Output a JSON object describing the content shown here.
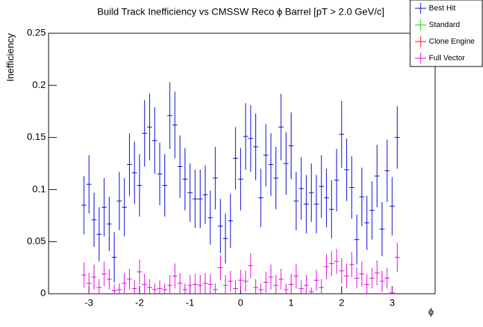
{
  "chart_data": {
    "type": "errorbar",
    "title": "Build Track Inefficiency vs CMSSW Reco ϕ Barrel [pT > 2.0 GeV/c]",
    "x_label": "ϕ",
    "y_label": "Inefficiency",
    "xlim": [
      -3.8,
      3.85
    ],
    "ylim": [
      0,
      0.25
    ],
    "xticks": [
      -3,
      -2,
      -1,
      0,
      1,
      2,
      3
    ],
    "yticks": [
      0,
      0.05,
      0.1,
      0.15,
      0.2,
      0.25
    ],
    "x": [
      -3.1,
      -3.0,
      -2.9,
      -2.8,
      -2.7,
      -2.6,
      -2.5,
      -2.4,
      -2.3,
      -2.2,
      -2.1,
      -2.0,
      -1.9,
      -1.8,
      -1.7,
      -1.6,
      -1.5,
      -1.4,
      -1.3,
      -1.2,
      -1.1,
      -1.0,
      -0.9,
      -0.8,
      -0.7,
      -0.6,
      -0.5,
      -0.4,
      -0.3,
      -0.2,
      -0.1,
      0.0,
      0.1,
      0.2,
      0.3,
      0.4,
      0.5,
      0.6,
      0.7,
      0.8,
      0.9,
      1.0,
      1.1,
      1.2,
      1.3,
      1.4,
      1.5,
      1.6,
      1.7,
      1.8,
      1.9,
      2.0,
      2.1,
      2.2,
      2.3,
      2.4,
      2.5,
      2.6,
      2.7,
      2.8,
      2.9,
      3.0,
      3.1
    ],
    "series": [
      {
        "name": "Best Hit",
        "color": "#0000cc",
        "values": [
          0.085,
          0.105,
          0.071,
          0.057,
          0.083,
          0.067,
          0.035,
          0.089,
          0.083,
          0.124,
          0.116,
          0.104,
          0.154,
          0.16,
          0.147,
          0.115,
          0.104,
          0.171,
          0.162,
          0.122,
          0.11,
          0.097,
          0.091,
          0.091,
          0.095,
          0.073,
          0.111,
          0.065,
          0.053,
          0.07,
          0.13,
          0.11,
          0.151,
          0.149,
          0.141,
          0.092,
          0.133,
          0.124,
          0.111,
          0.16,
          0.125,
          0.142,
          0.089,
          0.101,
          0.086,
          0.097,
          0.086,
          0.103,
          0.092,
          0.081,
          0.109,
          0.153,
          0.119,
          0.102,
          0.052,
          0.093,
          0.068,
          0.08,
          0.113,
          0.062,
          0.118,
          0.084,
          0.15
        ],
        "errors": [
          0.028,
          0.028,
          0.026,
          0.026,
          0.028,
          0.026,
          0.024,
          0.028,
          0.028,
          0.03,
          0.03,
          0.03,
          0.032,
          0.032,
          0.032,
          0.03,
          0.03,
          0.032,
          0.032,
          0.03,
          0.03,
          0.028,
          0.028,
          0.028,
          0.028,
          0.026,
          0.03,
          0.026,
          0.024,
          0.026,
          0.03,
          0.03,
          0.032,
          0.032,
          0.032,
          0.028,
          0.03,
          0.03,
          0.03,
          0.032,
          0.03,
          0.032,
          0.028,
          0.03,
          0.028,
          0.028,
          0.028,
          0.03,
          0.028,
          0.028,
          0.03,
          0.032,
          0.03,
          0.03,
          0.024,
          0.028,
          0.026,
          0.028,
          0.03,
          0.026,
          0.03,
          0.028,
          0.03
        ]
      },
      {
        "name": "Standard",
        "color": "#00cc00"
      },
      {
        "name": "Clone Engine",
        "color": "#ff0000"
      },
      {
        "name": "Full Vector",
        "color": "#e000e0",
        "values": [
          0.018,
          0.01,
          0.016,
          0.006,
          0.019,
          0.014,
          0.003,
          0.004,
          0.01,
          0.014,
          0.005,
          0.021,
          0.009,
          0.006,
          0.004,
          0.005,
          0.004,
          0.008,
          0.017,
          0.01,
          0.004,
          0.008,
          0.009,
          0.008,
          0.01,
          0.009,
          0.004,
          0.025,
          0.008,
          0.012,
          0.005,
          0.013,
          0.012,
          0.027,
          0.006,
          0.004,
          0.011,
          0.016,
          0.008,
          0.014,
          0.004,
          0.009,
          0.017,
          0.005,
          0.008,
          0.002,
          0.013,
          0.006,
          0.026,
          0.029,
          0.031,
          0.022,
          0.017,
          0.028,
          0.015,
          0.019,
          0.009,
          0.015,
          0.02,
          0.012,
          0.015,
          0.001,
          0.035
        ],
        "errors": [
          0.012,
          0.01,
          0.012,
          0.008,
          0.012,
          0.01,
          0.006,
          0.006,
          0.01,
          0.01,
          0.008,
          0.012,
          0.01,
          0.008,
          0.006,
          0.008,
          0.006,
          0.01,
          0.012,
          0.01,
          0.006,
          0.01,
          0.01,
          0.01,
          0.01,
          0.01,
          0.006,
          0.012,
          0.01,
          0.01,
          0.008,
          0.01,
          0.01,
          0.012,
          0.008,
          0.006,
          0.01,
          0.012,
          0.01,
          0.01,
          0.006,
          0.01,
          0.012,
          0.008,
          0.01,
          0.004,
          0.01,
          0.008,
          0.012,
          0.012,
          0.012,
          0.012,
          0.012,
          0.012,
          0.01,
          0.012,
          0.01,
          0.01,
          0.012,
          0.01,
          0.01,
          0.004,
          0.014
        ]
      }
    ]
  }
}
